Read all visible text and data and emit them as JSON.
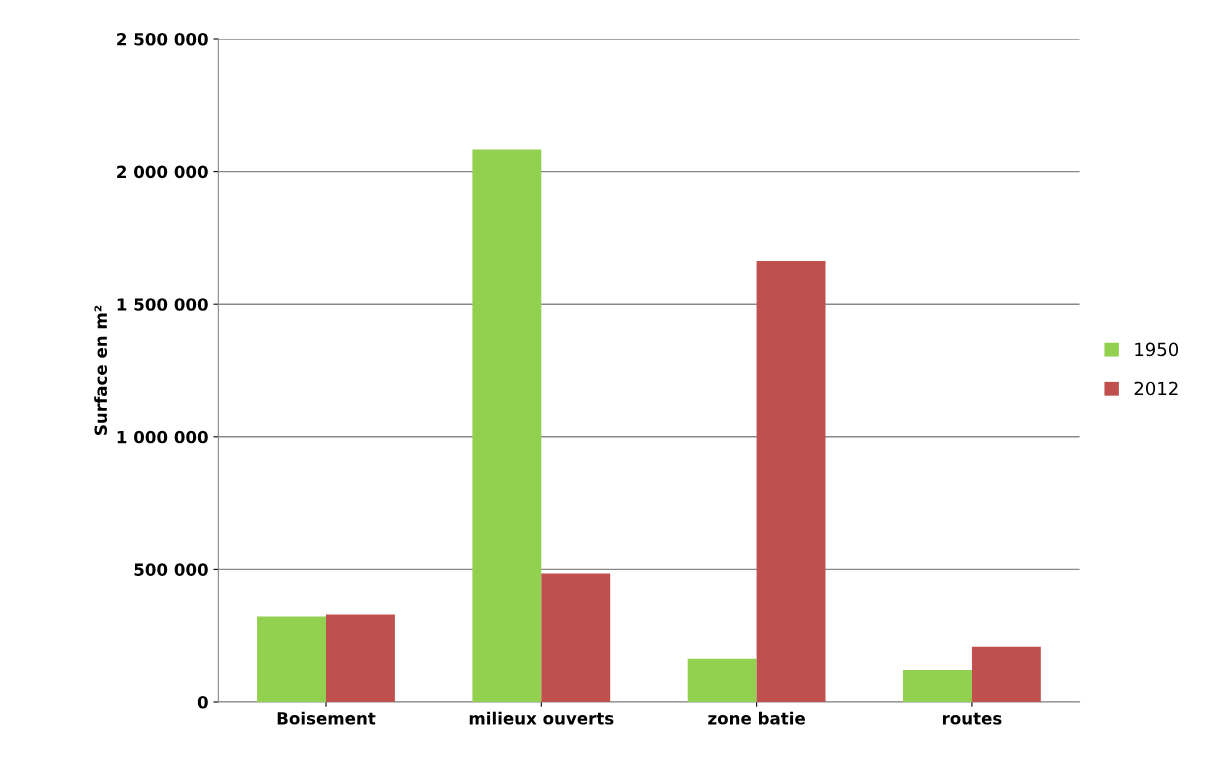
{
  "chart_data": {
    "type": "bar",
    "ylabel": "Surface en m²",
    "categories": [
      "Boisement",
      "milieux ouverts",
      "zone batie",
      "routes"
    ],
    "series": [
      {
        "name": "1950",
        "color": "#92d050",
        "values": [
          322000,
          2083000,
          163000,
          121000
        ]
      },
      {
        "name": "2012",
        "color": "#c0504d",
        "values": [
          330000,
          485000,
          1663000,
          208000
        ]
      }
    ],
    "ylim": [
      0,
      2500000
    ],
    "yticks": [
      0,
      {
        "value": 500000,
        "label": "500 000"
      },
      {
        "value": 1000000,
        "label": "1 000 000"
      },
      {
        "value": 1500000,
        "label": "1 500 000"
      },
      {
        "value": 2000000,
        "label": "2 000 000"
      },
      {
        "value": 2500000,
        "label": "2 500 000"
      }
    ],
    "grid": "y",
    "legend": "right"
  }
}
